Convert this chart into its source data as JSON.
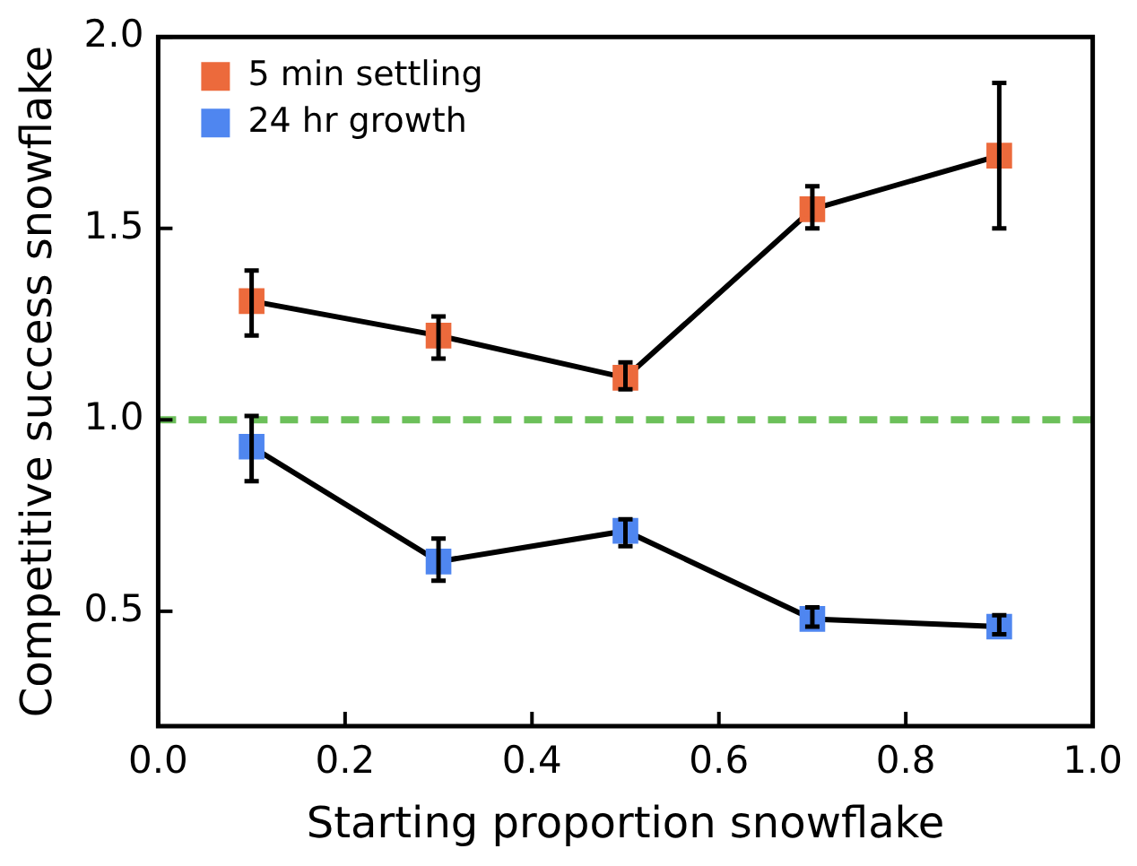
{
  "chart_data": {
    "type": "line",
    "xlabel": "Starting proportion snowflake",
    "ylabel": "Competitive success snowflake",
    "x": [
      0.1,
      0.3,
      0.5,
      0.7,
      0.9
    ],
    "series": [
      {
        "name": "5 min settling",
        "color": "#ec6a3c",
        "values": [
          1.31,
          1.22,
          1.11,
          1.55,
          1.69
        ],
        "errors": [
          [
            1.22,
            1.39
          ],
          [
            1.16,
            1.27
          ],
          [
            1.08,
            1.15
          ],
          [
            1.5,
            1.61
          ],
          [
            1.5,
            1.88
          ]
        ]
      },
      {
        "name": "24 hr growth",
        "color": "#4f86f0",
        "values": [
          0.93,
          0.63,
          0.71,
          0.48,
          0.46
        ],
        "errors": [
          [
            0.84,
            1.01
          ],
          [
            0.58,
            0.69
          ],
          [
            0.67,
            0.74
          ],
          [
            0.46,
            0.51
          ],
          [
            0.44,
            0.49
          ]
        ]
      }
    ],
    "xlim": [
      0,
      1
    ],
    "xticks": [
      {
        "value": 0,
        "label": "0.0"
      },
      {
        "value": 0.2,
        "label": "0.2"
      },
      {
        "value": 0.4,
        "label": "0.4"
      },
      {
        "value": 0.6,
        "label": "0.6"
      },
      {
        "value": 0.8,
        "label": "0.8"
      },
      {
        "value": 1,
        "label": "1.0"
      }
    ],
    "ylim": [
      0.2,
      2.0
    ],
    "yticks": [
      {
        "value": 0.5,
        "label": "0.5"
      },
      {
        "value": 1,
        "label": "1.0"
      },
      {
        "value": 1.5,
        "label": "1.5"
      },
      {
        "value": 2,
        "label": "2.0"
      }
    ],
    "ref_lines": [
      {
        "axis": "y",
        "value": 1,
        "color": "#6cc05a",
        "line_style": "dashed"
      }
    ],
    "marker": "square",
    "legend": "top left",
    "grid": false
  }
}
